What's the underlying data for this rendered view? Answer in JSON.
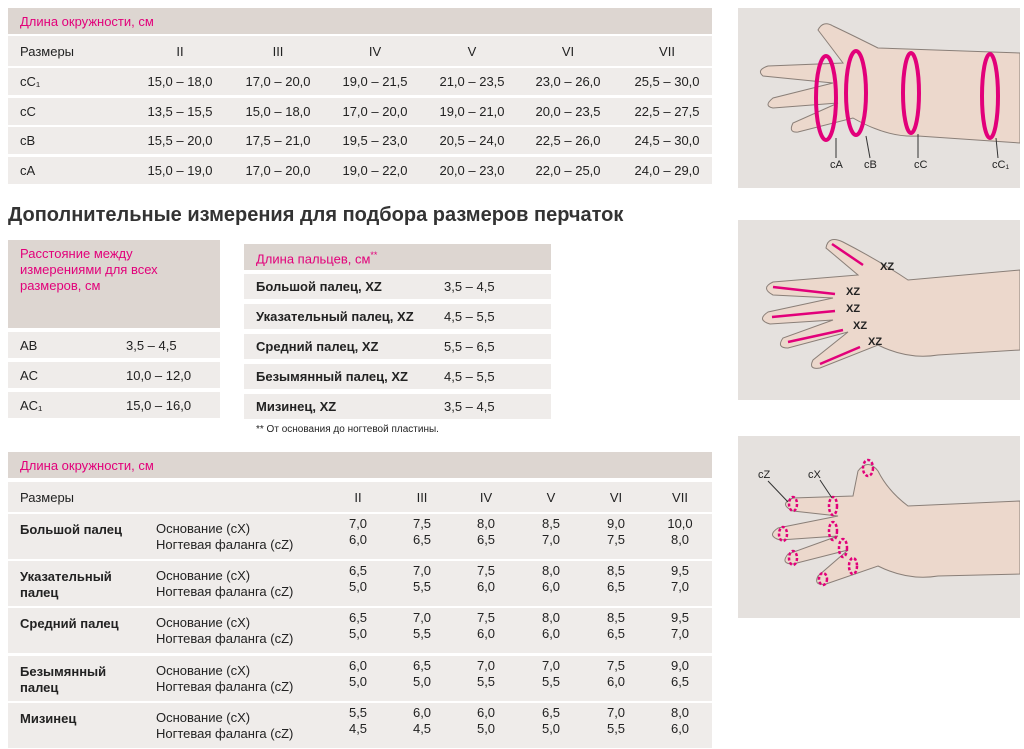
{
  "table1": {
    "header": "Длина окружности, см",
    "columns": [
      "Размеры",
      "II",
      "III",
      "IV",
      "V",
      "VI",
      "VII"
    ],
    "rows": [
      {
        "label": "cC₁",
        "values": [
          "15,0 – 18,0",
          "17,0 – 20,0",
          "19,0 – 21,5",
          "21,0 – 23,5",
          "23,0 – 26,0",
          "25,5 – 30,0"
        ]
      },
      {
        "label": "cC",
        "values": [
          "13,5 – 15,5",
          "15,0 – 18,0",
          "17,0 – 20,0",
          "19,0 – 21,0",
          "20,0 – 23,5",
          "22,5 – 27,5"
        ]
      },
      {
        "label": "cB",
        "values": [
          "15,5 – 20,0",
          "17,5 – 21,0",
          "19,5 – 23,0",
          "20,5 – 24,0",
          "22,5 – 26,0",
          "24,5 – 30,0"
        ]
      },
      {
        "label": "cA",
        "values": [
          "15,0 – 19,0",
          "17,0 – 20,0",
          "19,0 – 22,0",
          "20,0 – 23,0",
          "22,0 – 25,0",
          "24,0 – 29,0"
        ]
      }
    ]
  },
  "heading": "Дополнительные измерения для подбора размеров перчаток",
  "table2": {
    "header": "Расстояние между измерениями для всех размеров, см",
    "rows": [
      [
        "AB",
        "3,5 – 4,5"
      ],
      [
        "AC",
        "10,0 – 12,0"
      ],
      [
        "AC₁",
        "15,0 – 16,0"
      ]
    ]
  },
  "table3": {
    "header": "Длина пальцев, см",
    "header_mark": "**",
    "rows": [
      [
        "Большой палец, XZ",
        "3,5 – 4,5"
      ],
      [
        "Указательный палец, XZ",
        "4,5 – 5,5"
      ],
      [
        "Средний палец, XZ",
        "5,5 – 6,5"
      ],
      [
        "Безымянный палец, XZ",
        "4,5 – 5,5"
      ],
      [
        "Мизинец, XZ",
        "3,5 – 4,5"
      ]
    ],
    "footnote": "** От основания до ногтевой пластины."
  },
  "table4": {
    "header": "Длина окружности, см",
    "columns": [
      "Размеры",
      "II",
      "III",
      "IV",
      "V",
      "VI",
      "VII"
    ],
    "sublabels": [
      "Основание (cX)",
      "Ногтевая фаланга (cZ)"
    ],
    "rows": [
      {
        "label": "Большой палец",
        "values": [
          [
            "7,0",
            "6,0"
          ],
          [
            "7,5",
            "6,5"
          ],
          [
            "8,0",
            "6,5"
          ],
          [
            "8,5",
            "7,0"
          ],
          [
            "9,0",
            "7,5"
          ],
          [
            "10,0",
            "8,0"
          ]
        ]
      },
      {
        "label": "Указательный палец",
        "values": [
          [
            "6,5",
            "5,0"
          ],
          [
            "7,0",
            "5,5"
          ],
          [
            "7,5",
            "6,0"
          ],
          [
            "8,0",
            "6,0"
          ],
          [
            "8,5",
            "6,5"
          ],
          [
            "9,5",
            "7,0"
          ]
        ]
      },
      {
        "label": "Средний палец",
        "values": [
          [
            "6,5",
            "5,0"
          ],
          [
            "7,0",
            "5,5"
          ],
          [
            "7,5",
            "6,0"
          ],
          [
            "8,0",
            "6,0"
          ],
          [
            "8,5",
            "6,5"
          ],
          [
            "9,5",
            "7,0"
          ]
        ]
      },
      {
        "label": "Безымянный палец",
        "values": [
          [
            "6,0",
            "5,0"
          ],
          [
            "6,5",
            "5,0"
          ],
          [
            "7,0",
            "5,5"
          ],
          [
            "7,0",
            "5,5"
          ],
          [
            "7,5",
            "6,0"
          ],
          [
            "9,0",
            "6,5"
          ]
        ]
      },
      {
        "label": "Мизинец",
        "values": [
          [
            "5,5",
            "4,5"
          ],
          [
            "6,0",
            "4,5"
          ],
          [
            "6,0",
            "5,0"
          ],
          [
            "6,5",
            "5,0"
          ],
          [
            "7,0",
            "5,5"
          ],
          [
            "8,0",
            "6,0"
          ]
        ]
      }
    ]
  },
  "images": [
    {
      "labels": [
        "cA",
        "cB",
        "cC",
        "cC₁"
      ]
    },
    {
      "labels": [
        "XZ",
        "XZ",
        "XZ",
        "XZ",
        "XZ"
      ]
    },
    {
      "labels": [
        "cZ",
        "cX"
      ]
    }
  ]
}
